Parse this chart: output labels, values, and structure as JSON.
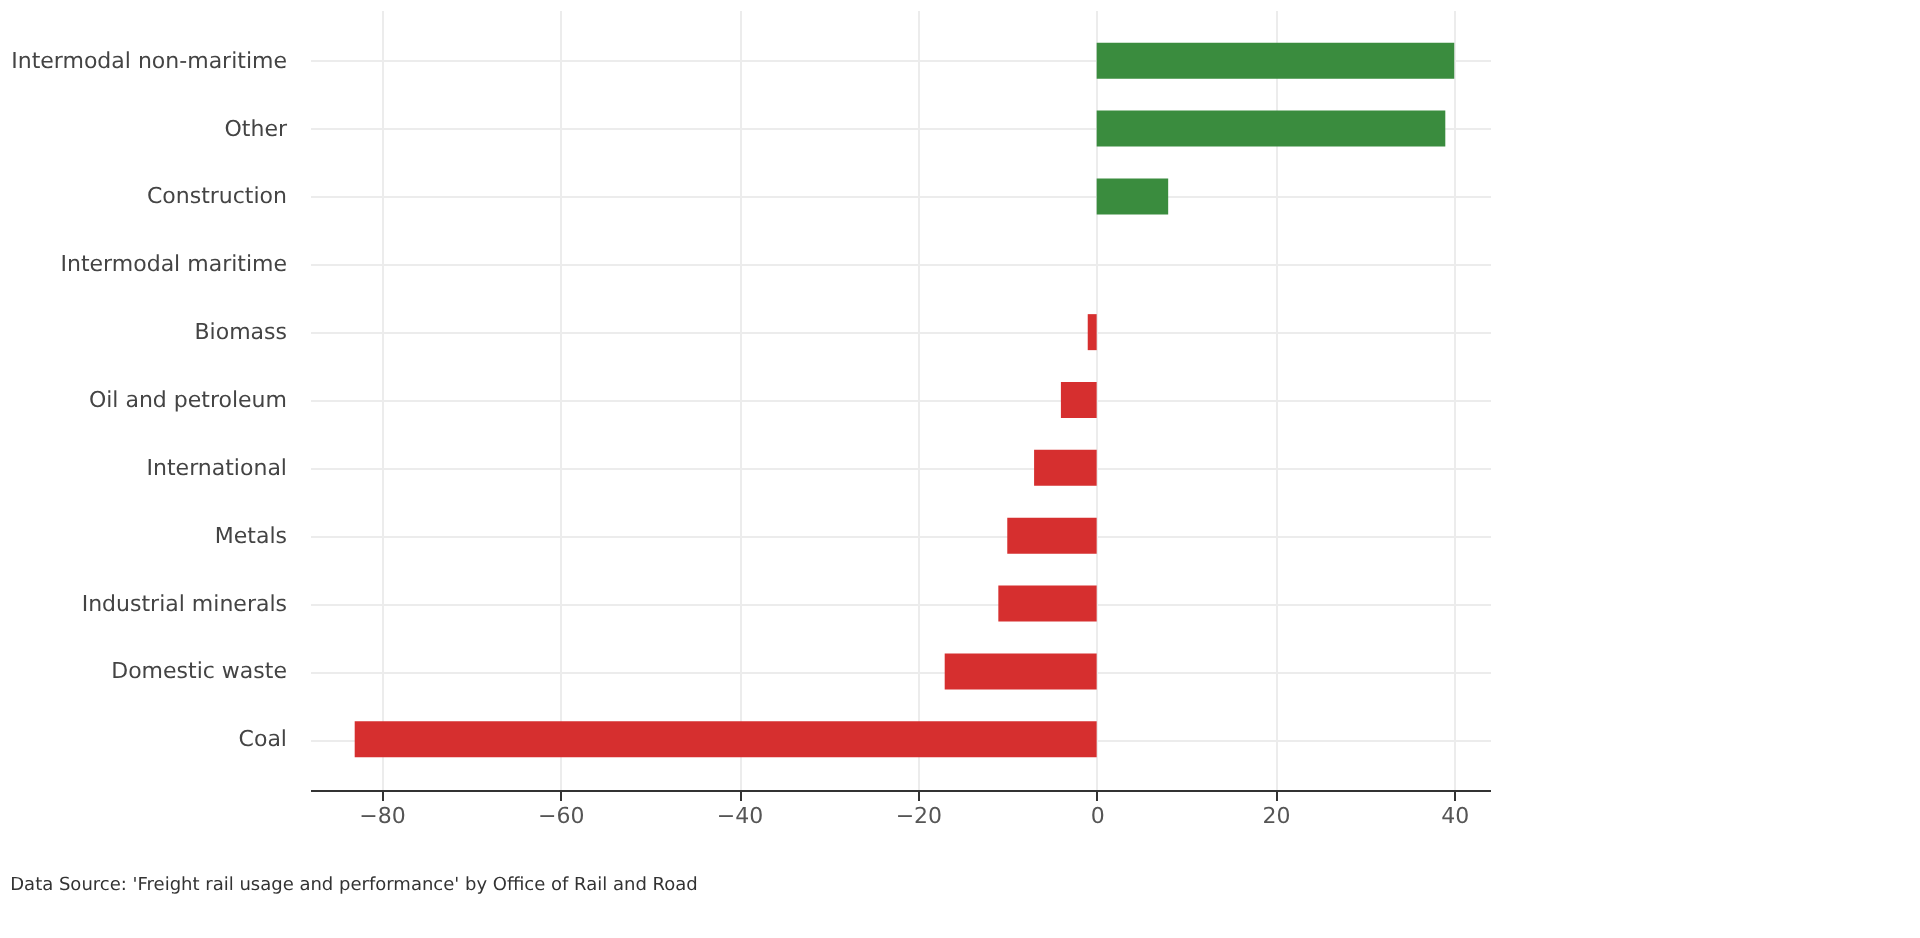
{
  "chart_data": {
    "type": "bar",
    "orientation": "horizontal",
    "categories": [
      "Intermodal non-maritime",
      "Other",
      "Construction",
      "Intermodal maritime",
      "Biomass",
      "Oil and petroleum",
      "International",
      "Metals",
      "Industrial minerals",
      "Domestic waste",
      "Coal"
    ],
    "values": [
      40,
      39,
      8,
      0,
      -1,
      -4,
      -7,
      -10,
      -11,
      -17,
      -83
    ],
    "colors": [
      "#3a8c3e",
      "#3a8c3e",
      "#3a8c3e",
      "#3a8c3e",
      "#d62f2f",
      "#d62f2f",
      "#d62f2f",
      "#d62f2f",
      "#d62f2f",
      "#d62f2f",
      "#d62f2f"
    ],
    "xlim": [
      -88,
      44
    ],
    "xticks": [
      -80,
      -60,
      -40,
      -20,
      0,
      20,
      40
    ],
    "grid": true,
    "annotations": [
      "Data Source: 'Freight rail usage and performance' by Office of Rail and Road"
    ]
  }
}
